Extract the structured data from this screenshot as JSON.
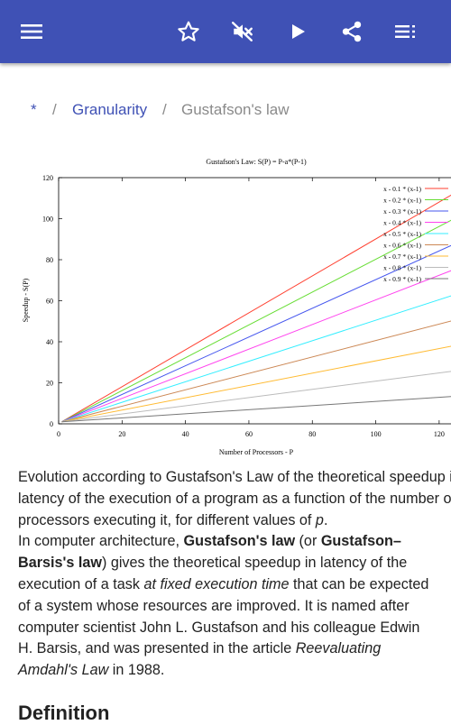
{
  "appbar": {
    "bg_color": "#3f51b5",
    "icons": [
      "menu-icon",
      "star-outline-icon",
      "volume-mute-icon",
      "play-icon",
      "share-icon",
      "playlist-icon"
    ]
  },
  "breadcrumb": {
    "root": "*",
    "separator": "/",
    "parent": "Granularity",
    "current": "Gustafson's law"
  },
  "chart_data": {
    "type": "line",
    "title": "Gustafson's Law: S(P) = P-a*(P-1)",
    "xlabel": "Number of Processors - P",
    "ylabel": "Speedup - S(P)",
    "xlim": [
      0,
      128
    ],
    "ylim": [
      0,
      120
    ],
    "xticks": [
      0,
      20,
      40,
      60,
      80,
      100,
      120
    ],
    "yticks": [
      0,
      20,
      40,
      60,
      80,
      100,
      120
    ],
    "legend_position": "top-right",
    "series": [
      {
        "name": "x - 0.1 * (x-1)",
        "a": 0.1,
        "color": "#ff3f2f",
        "points": [
          [
            1,
            1
          ],
          [
            128,
            115.3
          ]
        ]
      },
      {
        "name": "x - 0.2 * (x-1)",
        "a": 0.2,
        "color": "#66dd33",
        "points": [
          [
            1,
            1
          ],
          [
            128,
            102.6
          ]
        ]
      },
      {
        "name": "x - 0.3 * (x-1)",
        "a": 0.3,
        "color": "#4455ee",
        "points": [
          [
            1,
            1
          ],
          [
            128,
            89.9
          ]
        ]
      },
      {
        "name": "x - 0.4 * (x-1)",
        "a": 0.4,
        "color": "#ff44ee",
        "points": [
          [
            1,
            1
          ],
          [
            128,
            77.2
          ]
        ]
      },
      {
        "name": "x - 0.5 * (x-1)",
        "a": 0.5,
        "color": "#33eeff",
        "points": [
          [
            1,
            1
          ],
          [
            128,
            64.5
          ]
        ]
      },
      {
        "name": "x - 0.6 * (x-1)",
        "a": 0.6,
        "color": "#cc8855",
        "points": [
          [
            1,
            1
          ],
          [
            128,
            51.8
          ]
        ]
      },
      {
        "name": "x - 0.7 * (x-1)",
        "a": 0.7,
        "color": "#ffbb33",
        "points": [
          [
            1,
            1
          ],
          [
            128,
            39.1
          ]
        ]
      },
      {
        "name": "x - 0.8 * (x-1)",
        "a": 0.8,
        "color": "#bbbbbb",
        "points": [
          [
            1,
            1
          ],
          [
            128,
            26.4
          ]
        ]
      },
      {
        "name": "x - 0.9 * (x-1)",
        "a": 0.9,
        "color": "#777777",
        "points": [
          [
            1,
            1
          ],
          [
            128,
            13.7
          ]
        ]
      }
    ]
  },
  "article": {
    "p1_l1": "Evolution according to Gustafson's Law of the theoretical speedup in",
    "p1_l2": "latency of the execution of a program as a function of the number of",
    "p1_l3a": "processors executing it, for different values of ",
    "p1_l3b": "p",
    "p1_l3c": ".",
    "p2_l1a": "In computer architecture, ",
    "p2_l1b": "Gustafson's law",
    "p2_l1c": " (or ",
    "p2_l1d": "Gustafson–",
    "p2_l2a": "Barsis's law",
    "p2_l2b": ") gives the theoretical speedup in latency of the",
    "p2_l3a": "execution of a task ",
    "p2_l3b": "at fixed execution time",
    "p2_l3c": " that can be expected",
    "p2_l4": "of a system whose resources are improved. It is named after",
    "p2_l5": "computer scientist John L. Gustafson and his colleague Edwin",
    "p2_l6": "H. Barsis, and was presented in the article ",
    "p2_l6b": "Reevaluating",
    "p2_l7a": "Amdahl's Law",
    "p2_l7b": " in 1988."
  },
  "section_heading": "Definition"
}
